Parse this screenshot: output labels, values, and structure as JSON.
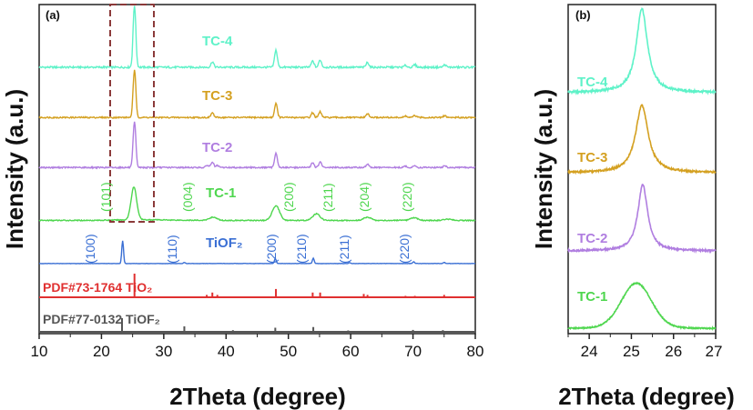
{
  "chart_data": [
    {
      "panel": "(a)",
      "type": "line",
      "xlabel": "2Theta (degree)",
      "ylabel": "Intensity (a.u.)",
      "xlim": [
        10,
        80
      ],
      "xticks": [
        10,
        20,
        30,
        40,
        50,
        60,
        70,
        80
      ],
      "yticks_shown": false,
      "highlight_box_x": [
        22,
        28
      ],
      "series": [
        {
          "name": "TC-4",
          "color": "#5ef2c8",
          "peaks": [
            [
              25.3,
              100
            ],
            [
              37.8,
              9
            ],
            [
              48.0,
              28
            ],
            [
              53.9,
              10
            ],
            [
              55.1,
              12
            ],
            [
              62.7,
              8
            ],
            [
              68.8,
              3
            ],
            [
              70.3,
              4
            ],
            [
              75.1,
              4
            ]
          ]
        },
        {
          "name": "TC-3",
          "color": "#d4a020",
          "peaks": [
            [
              25.3,
              100
            ],
            [
              37.8,
              10
            ],
            [
              48.0,
              30
            ],
            [
              53.9,
              10
            ],
            [
              55.1,
              12
            ],
            [
              62.7,
              8
            ],
            [
              68.8,
              3
            ],
            [
              70.3,
              4
            ],
            [
              75.1,
              4
            ]
          ]
        },
        {
          "name": "TC-2",
          "color": "#b07ee0",
          "peaks": [
            [
              25.3,
              100
            ],
            [
              37.0,
              5
            ],
            [
              37.8,
              12
            ],
            [
              38.6,
              4
            ],
            [
              48.0,
              32
            ],
            [
              53.9,
              11
            ],
            [
              55.1,
              12
            ],
            [
              62.7,
              8
            ],
            [
              68.8,
              3
            ],
            [
              70.3,
              4
            ],
            [
              75.1,
              4
            ]
          ]
        },
        {
          "name": "TC-1",
          "color": "#4ed64e",
          "peaks": [
            [
              25.2,
              100
            ],
            [
              37.9,
              10
            ],
            [
              48.0,
              45
            ],
            [
              54.5,
              20
            ],
            [
              62.7,
              10
            ],
            [
              70.2,
              8
            ],
            [
              75.5,
              4
            ]
          ]
        },
        {
          "name": "TiOF₂",
          "color": "#3a6fd4",
          "peaks": [
            [
              23.4,
              100
            ],
            [
              33.3,
              5
            ],
            [
              47.9,
              22
            ],
            [
              54.0,
              23
            ],
            [
              59.8,
              4
            ],
            [
              70.1,
              8
            ],
            [
              75.0,
              5
            ]
          ]
        }
      ],
      "references": [
        {
          "name": "PDF#73-1764 TiO₂",
          "color": "#e03030",
          "lines": [
            [
              25.3,
              100
            ],
            [
              36.9,
              10
            ],
            [
              37.8,
              20
            ],
            [
              38.6,
              10
            ],
            [
              48.0,
              35
            ],
            [
              53.9,
              20
            ],
            [
              55.1,
              20
            ],
            [
              62.1,
              14
            ],
            [
              62.7,
              10
            ],
            [
              68.8,
              6
            ],
            [
              70.3,
              6
            ],
            [
              74.1,
              3
            ],
            [
              75.0,
              10
            ],
            [
              76.0,
              4
            ]
          ]
        },
        {
          "name": "PDF#77-0132 TiOF₂",
          "color": "#555555",
          "lines": [
            [
              23.3,
              100
            ],
            [
              33.3,
              40
            ],
            [
              41.1,
              12
            ],
            [
              47.9,
              30
            ],
            [
              54.0,
              35
            ],
            [
              59.6,
              10
            ],
            [
              70.0,
              14
            ],
            [
              74.8,
              12
            ],
            [
              79.4,
              6
            ]
          ]
        }
      ],
      "annotations_tc1": [
        "(101)",
        "(004)",
        "(200)",
        "(211)",
        "(204)",
        "(220)"
      ],
      "annotations_tiof2": [
        "(100)",
        "(110)",
        "(200)",
        "(210)",
        "(211)",
        "(220)"
      ]
    },
    {
      "panel": "(b)",
      "type": "line",
      "xlabel": "2Theta (degree)",
      "ylabel": "Intensity (a.u.)",
      "xlim": [
        23.5,
        27
      ],
      "xticks": [
        24,
        25,
        26,
        27
      ],
      "series": [
        {
          "name": "TC-4",
          "color": "#5ef2c8",
          "center": 25.25,
          "fwhm": 0.32
        },
        {
          "name": "TC-3",
          "color": "#d4a020",
          "center": 25.25,
          "fwhm": 0.36
        },
        {
          "name": "TC-2",
          "color": "#b07ee0",
          "center": 25.27,
          "fwhm": 0.28
        },
        {
          "name": "TC-1",
          "color": "#4ed64e",
          "center": 25.12,
          "fwhm": 0.85
        }
      ]
    }
  ]
}
